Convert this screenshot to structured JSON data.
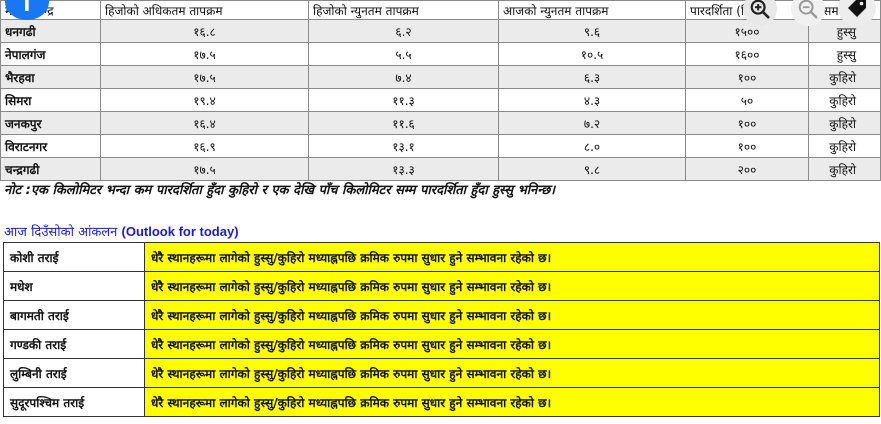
{
  "weather_table": {
    "headers": [
      "मौसम केन्द्र",
      "हिजोको अधिकतम तापक्रम",
      "हिजोको न्युनतम तापक्रम",
      "आजको न्युनतम तापक्रम",
      "पारदर्शिता (मि",
      "मौसम"
    ],
    "rows": [
      {
        "station": "धनगढी",
        "max_yesterday": "१६.८",
        "min_yesterday": "६.२",
        "min_today": "९.६",
        "visibility": "१५००",
        "weather": "हुस्सु"
      },
      {
        "station": "नेपालगंज",
        "max_yesterday": "१७.५",
        "min_yesterday": "५.५",
        "min_today": "१०.५",
        "visibility": "१६००",
        "weather": "हुस्सु"
      },
      {
        "station": "भैरहवा",
        "max_yesterday": "१७.५",
        "min_yesterday": "७.४",
        "min_today": "६.३",
        "visibility": "१००",
        "weather": "कुहिरो"
      },
      {
        "station": "सिमरा",
        "max_yesterday": "१९.४",
        "min_yesterday": "११.३",
        "min_today": "४.३",
        "visibility": "५०",
        "weather": "कुहिरो"
      },
      {
        "station": "जनकपुर",
        "max_yesterday": "१६.४",
        "min_yesterday": "११.६",
        "min_today": "७.२",
        "visibility": "१००",
        "weather": "कुहिरो"
      },
      {
        "station": "विराटनगर",
        "max_yesterday": "१६.९",
        "min_yesterday": "१३.१",
        "min_today": "८.०",
        "visibility": "१००",
        "weather": "कुहिरो"
      },
      {
        "station": "चन्द्रगढी",
        "max_yesterday": "१७.५",
        "min_yesterday": "१३.३",
        "min_today": "९.८",
        "visibility": "२००",
        "weather": "कुहिरो"
      }
    ]
  },
  "note": "नोट :एक किलोमिटर भन्दा कम पारदर्शिता हुँदा कुहिरो र एक देखि पाँच किलोमिटर सम्म पारदर्शिता हुँदा हुस्सु भनिन्छ।",
  "outlook": {
    "heading_np": "आज दिउँसोको आंकलन",
    "heading_en": "(Outlook for today)",
    "rows": [
      {
        "region": "कोशी तराई",
        "forecast": "धेरै  स्थानहरूमा लागेको हुस्सु/कुहिरो   मध्याह्नपछि  क्रमिक रुपमा सुधार हुने सम्भावना रहेको छ।"
      },
      {
        "region": "मधेश",
        "forecast": "धेरै  स्थानहरूमा लागेको हुस्सु/कुहिरो   मध्याह्नपछि  क्रमिक रुपमा सुधार हुने सम्भावना रहेको छ।"
      },
      {
        "region": "बागमती तराई",
        "forecast": "धेरै  स्थानहरूमा लागेको हुस्सु/कुहिरो   मध्याह्नपछि  क्रमिक रुपमा सुधार हुने सम्भावना रहेको छ।"
      },
      {
        "region": "गण्डकी तराई",
        "forecast": "धेरै  स्थानहरूमा लागेको हुस्सु/कुहिरो मध्याह्नपछि  क्रमिक रुपमा सुधार हुने सम्भावना रहेको छ।"
      },
      {
        "region": "लुम्बिनी तराई",
        "forecast": "धेरै  स्थानहरूमा लागेको हुस्सु/कुहिरो   मध्याह्नपछि  क्रमिक रुपमा सुधार हुने सम्भावना रहेको छ।"
      },
      {
        "region": "सुदूरपश्चिम तराई",
        "forecast": "धेरै  स्थानहरूमा लागेको हुस्सु/कुहिरो  मध्याह्नपछि  क्रमिक रुपमा सुधार हुने सम्भावना रहेको छ।"
      }
    ]
  },
  "toolbar": {
    "share_icon": "facebook-icon",
    "zoom_in_icon": "zoom-in-icon",
    "zoom_out_icon": "zoom-out-icon",
    "tag_icon": "tag-icon",
    "facebook_color": "#1877f2",
    "highlight_color": "#ffff00",
    "heading_color": "#1a1adb"
  }
}
